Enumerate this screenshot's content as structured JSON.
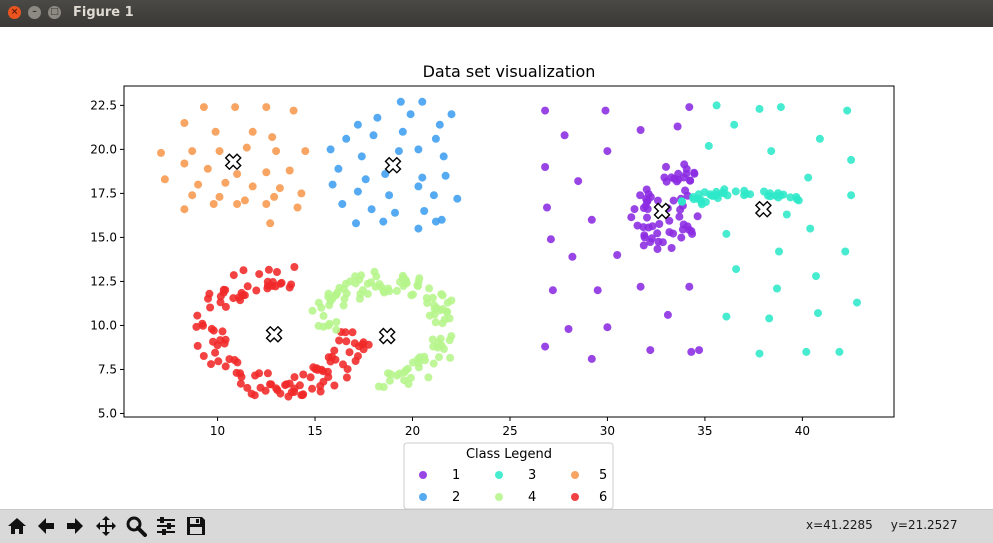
{
  "window": {
    "title": "Figure 1"
  },
  "toolbar": {
    "tools": [
      "home-icon",
      "back-arrow-icon",
      "forward-arrow-icon",
      "pan-move-icon",
      "zoom-magnifier-icon",
      "subplots-config-icon",
      "save-disk-icon"
    ],
    "coord_x": "x=41.2285",
    "coord_y": "y=21.2527"
  },
  "chart_data": {
    "type": "scatter",
    "title": "Data set visualization",
    "xlabel": "",
    "ylabel": "",
    "xlim": [
      5.2,
      44.7
    ],
    "ylim": [
      4.8,
      23.6
    ],
    "xticks": [
      10,
      15,
      20,
      25,
      30,
      35,
      40
    ],
    "yticks": [
      5.0,
      7.5,
      10.0,
      12.5,
      15.0,
      17.5,
      20.0,
      22.5
    ],
    "ytick_labels": [
      "5.0",
      "7.5",
      "10.0",
      "12.5",
      "15.0",
      "17.5",
      "20.0",
      "22.5"
    ],
    "grid": false,
    "legend": {
      "title": "Class Legend",
      "placement": "below plot",
      "ncol": 3
    },
    "series": [
      {
        "name": "1",
        "color": "#8b2be2",
        "shape": "scattered-and-blob",
        "blob_center": [
          32.8,
          16.5
        ],
        "points": [
          [
            26.8,
            22.2
          ],
          [
            27.8,
            20.8
          ],
          [
            29.9,
            22.2
          ],
          [
            31.7,
            21.1
          ],
          [
            33.6,
            21.3
          ],
          [
            34.2,
            22.4
          ],
          [
            26.8,
            19.0
          ],
          [
            28.5,
            18.2
          ],
          [
            30.0,
            19.9
          ],
          [
            26.9,
            16.7
          ],
          [
            29.2,
            16.0
          ],
          [
            27.1,
            14.9
          ],
          [
            28.2,
            13.9
          ],
          [
            30.5,
            14.0
          ],
          [
            27.2,
            12.0
          ],
          [
            29.5,
            12.0
          ],
          [
            31.7,
            12.2
          ],
          [
            34.2,
            12.2
          ],
          [
            28.0,
            9.8
          ],
          [
            30.0,
            9.9
          ],
          [
            33.1,
            10.6
          ],
          [
            26.8,
            8.8
          ],
          [
            29.2,
            8.1
          ],
          [
            32.2,
            8.6
          ],
          [
            34.7,
            8.6
          ],
          [
            34.3,
            8.5
          ]
        ]
      },
      {
        "name": "2",
        "color": "#3f9ef0",
        "shape": "cluster",
        "center": [
          19.0,
          19.1
        ],
        "points": [
          [
            18.2,
            21.8
          ],
          [
            19.4,
            22.7
          ],
          [
            20.5,
            22.7
          ],
          [
            17.2,
            21.4
          ],
          [
            19.9,
            22.0
          ],
          [
            21.4,
            21.4
          ],
          [
            22.0,
            22.0
          ],
          [
            16.6,
            20.6
          ],
          [
            18.0,
            20.8
          ],
          [
            19.5,
            21.0
          ],
          [
            21.2,
            20.6
          ],
          [
            15.8,
            20.0
          ],
          [
            17.4,
            19.6
          ],
          [
            19.3,
            19.9
          ],
          [
            20.3,
            20.0
          ],
          [
            21.6,
            19.6
          ],
          [
            16.2,
            18.9
          ],
          [
            17.6,
            18.3
          ],
          [
            18.6,
            18.6
          ],
          [
            20.5,
            18.4
          ],
          [
            21.7,
            18.5
          ],
          [
            15.9,
            18.0
          ],
          [
            17.2,
            17.6
          ],
          [
            18.8,
            17.4
          ],
          [
            20.3,
            17.9
          ],
          [
            21.1,
            17.4
          ],
          [
            22.3,
            17.2
          ],
          [
            16.4,
            16.9
          ],
          [
            17.9,
            16.6
          ],
          [
            19.1,
            16.4
          ],
          [
            20.6,
            16.5
          ],
          [
            21.5,
            16.0
          ],
          [
            17.1,
            15.8
          ],
          [
            18.5,
            15.9
          ],
          [
            20.3,
            15.5
          ],
          [
            21.2,
            15.9
          ]
        ]
      },
      {
        "name": "3",
        "color": "#2ee8c8",
        "shape": "scattered-and-arc",
        "arc_center": [
          38.0,
          16.6
        ],
        "points": [
          [
            35.6,
            22.5
          ],
          [
            37.8,
            22.3
          ],
          [
            38.9,
            22.4
          ],
          [
            42.3,
            22.2
          ],
          [
            36.5,
            21.4
          ],
          [
            35.2,
            20.2
          ],
          [
            38.4,
            19.9
          ],
          [
            40.9,
            20.6
          ],
          [
            42.5,
            19.4
          ],
          [
            40.3,
            18.4
          ],
          [
            42.5,
            17.4
          ],
          [
            39.2,
            16.3
          ],
          [
            40.4,
            15.5
          ],
          [
            36.1,
            15.2
          ],
          [
            42.2,
            14.2
          ],
          [
            38.8,
            14.2
          ],
          [
            36.6,
            13.2
          ],
          [
            40.7,
            12.8
          ],
          [
            38.7,
            12.1
          ],
          [
            42.8,
            11.3
          ],
          [
            36.1,
            10.5
          ],
          [
            38.3,
            10.4
          ],
          [
            40.8,
            10.7
          ],
          [
            37.8,
            8.4
          ],
          [
            40.2,
            8.5
          ],
          [
            41.9,
            8.5
          ]
        ]
      },
      {
        "name": "4",
        "color": "#b6f58b",
        "shape": "crescent",
        "center": [
          18.7,
          9.4
        ]
      },
      {
        "name": "5",
        "color": "#f7994f",
        "shape": "cluster",
        "center": [
          10.8,
          19.3
        ],
        "points": [
          [
            9.3,
            22.4
          ],
          [
            10.9,
            22.4
          ],
          [
            12.5,
            22.4
          ],
          [
            13.9,
            22.2
          ],
          [
            8.3,
            21.5
          ],
          [
            9.9,
            21.0
          ],
          [
            11.8,
            21.0
          ],
          [
            12.8,
            20.7
          ],
          [
            7.1,
            19.8
          ],
          [
            8.7,
            19.9
          ],
          [
            10.1,
            19.9
          ],
          [
            11.5,
            20.1
          ],
          [
            13.0,
            19.9
          ],
          [
            14.5,
            19.9
          ],
          [
            8.3,
            19.2
          ],
          [
            9.5,
            18.9
          ],
          [
            11.0,
            18.6
          ],
          [
            12.5,
            18.7
          ],
          [
            13.7,
            18.8
          ],
          [
            7.3,
            18.3
          ],
          [
            9.0,
            18.0
          ],
          [
            10.4,
            18.1
          ],
          [
            11.8,
            17.9
          ],
          [
            13.2,
            17.8
          ],
          [
            8.7,
            17.4
          ],
          [
            10.1,
            17.3
          ],
          [
            11.4,
            17.1
          ],
          [
            12.9,
            17.3
          ],
          [
            14.3,
            17.5
          ],
          [
            8.3,
            16.6
          ],
          [
            9.8,
            16.9
          ],
          [
            11.0,
            16.9
          ],
          [
            12.5,
            16.9
          ],
          [
            14.1,
            16.7
          ],
          [
            12.7,
            15.8
          ]
        ]
      },
      {
        "name": "6",
        "color": "#f02828",
        "shape": "crescent",
        "center": [
          12.9,
          9.5
        ]
      }
    ]
  }
}
